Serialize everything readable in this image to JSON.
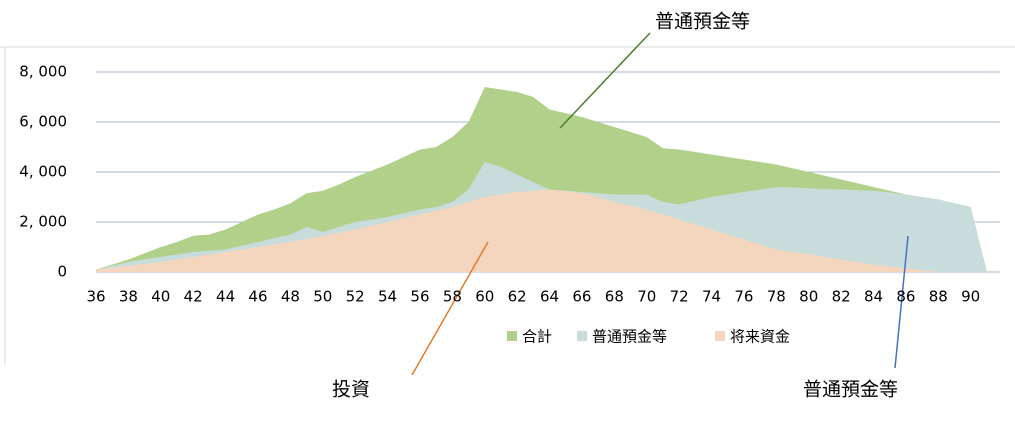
{
  "chart_data": {
    "type": "area",
    "x": [
      36,
      37,
      38,
      39,
      40,
      41,
      42,
      43,
      44,
      45,
      46,
      47,
      48,
      49,
      50,
      51,
      52,
      53,
      54,
      55,
      56,
      57,
      58,
      59,
      60,
      61,
      62,
      63,
      64,
      65,
      66,
      67,
      68,
      69,
      70,
      71,
      72,
      73,
      74,
      75,
      76,
      77,
      78,
      79,
      80,
      81,
      82,
      83,
      84,
      85,
      86,
      87,
      88,
      89,
      90,
      91
    ],
    "series": [
      {
        "name": "合計",
        "color": "#b1d18b",
        "values": [
          100,
          300,
          500,
          750,
          1000,
          1200,
          1450,
          1500,
          1700,
          2000,
          2300,
          2500,
          2750,
          3150,
          3250,
          3500,
          3800,
          4050,
          4300,
          4600,
          4900,
          5000,
          5400,
          6000,
          7400,
          7300,
          7200,
          7000,
          6500,
          6350,
          6200,
          6000,
          5800,
          5600,
          5400,
          4950,
          4900,
          4800,
          4700,
          4600,
          4500,
          4400,
          4300,
          4150,
          4000,
          3850,
          3700,
          3550,
          3400,
          3250,
          3100,
          3000,
          2900,
          2750,
          2600,
          0
        ]
      },
      {
        "name": "普通預金等",
        "color": "#c8dcdc",
        "values": [
          100,
          250,
          400,
          500,
          600,
          700,
          800,
          850,
          900,
          1050,
          1200,
          1350,
          1500,
          1800,
          1600,
          1800,
          2000,
          2100,
          2200,
          2350,
          2500,
          2600,
          2800,
          3300,
          4400,
          4200,
          3900,
          3600,
          3300,
          3250,
          3200,
          3150,
          3100,
          3100,
          3100,
          2800,
          2700,
          2850,
          3000,
          3100,
          3200,
          3300,
          3400,
          3380,
          3350,
          3320,
          3300,
          3270,
          3250,
          3180,
          3100,
          3000,
          2900,
          2750,
          2600,
          0
        ]
      },
      {
        "name": "将来資金",
        "color": "#f4d6bf",
        "values": [
          100,
          170,
          250,
          320,
          400,
          500,
          600,
          700,
          800,
          900,
          1000,
          1100,
          1200,
          1320,
          1450,
          1570,
          1700,
          1850,
          2000,
          2150,
          2300,
          2450,
          2600,
          2800,
          3000,
          3100,
          3200,
          3250,
          3300,
          3230,
          3150,
          3000,
          2800,
          2650,
          2500,
          2300,
          2100,
          1900,
          1700,
          1500,
          1300,
          1100,
          900,
          800,
          700,
          600,
          500,
          400,
          300,
          220,
          150,
          70,
          0,
          0,
          0,
          0
        ]
      }
    ],
    "xlim": [
      36,
      91.5
    ],
    "xticks": [
      36,
      38,
      40,
      42,
      44,
      46,
      48,
      50,
      52,
      54,
      56,
      58,
      60,
      62,
      64,
      66,
      68,
      70,
      72,
      74,
      76,
      78,
      80,
      82,
      84,
      86,
      88,
      90
    ],
    "ylim": [
      0,
      8000
    ],
    "yticks": [
      0,
      {
        "value": 2000,
        "label": "2, 000"
      },
      {
        "value": 4000,
        "label": "4, 000"
      },
      {
        "value": 6000,
        "label": "6, 000"
      },
      {
        "value": 8000,
        "label": "8, 000"
      }
    ],
    "grid": true,
    "annotations": [
      {
        "text": "普通預金等",
        "color": "#4f7f2c"
      },
      {
        "text": "投資",
        "color": "#e87a2c"
      },
      {
        "text": "普通預金等",
        "color": "#4472c4"
      }
    ]
  }
}
